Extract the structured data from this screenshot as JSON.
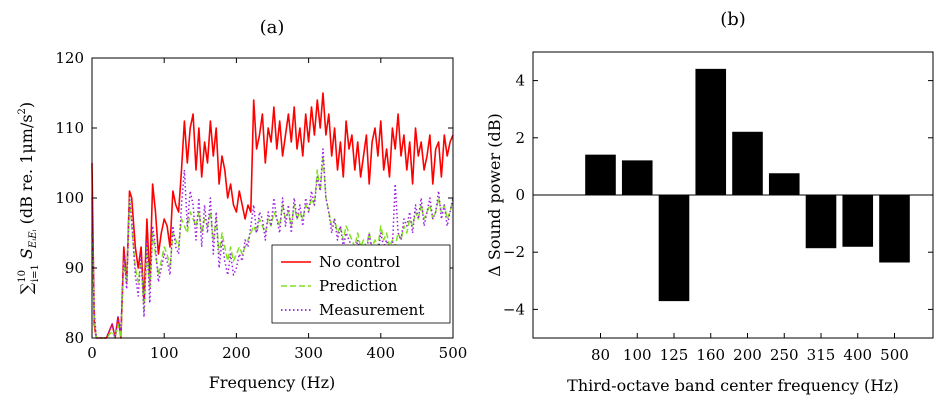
{
  "chart_data": [
    {
      "type": "line",
      "title": "(a)",
      "xlabel": "Frequency (Hz)",
      "ylabel": "∑ S (dB re. 1μm/s²)",
      "ylabel_parts": {
        "sum": "∑",
        "lim_top": "10",
        "lim_bottom": "i=1",
        "symbol": "S",
        "sub": "EᵢEᵢ",
        "rest": " (dB re. 1μm/s",
        "sup": "2",
        "close": ")"
      },
      "xlim": [
        0,
        500
      ],
      "ylim": [
        80,
        120
      ],
      "xticks": [
        0,
        100,
        200,
        300,
        400,
        500
      ],
      "yticks": [
        80,
        90,
        100,
        110,
        120
      ],
      "legend_position": "bottom-right",
      "grid": false,
      "series": [
        {
          "name": "No control",
          "color": "#ff0000",
          "dash": "solid",
          "x": [
            0,
            3,
            6,
            10,
            20,
            28,
            32,
            36,
            40,
            44,
            48,
            52,
            55,
            60,
            64,
            68,
            72,
            76,
            80,
            84,
            88,
            92,
            96,
            100,
            104,
            108,
            112,
            116,
            120,
            124,
            128,
            132,
            136,
            140,
            144,
            148,
            152,
            156,
            160,
            164,
            168,
            172,
            176,
            180,
            184,
            188,
            192,
            196,
            200,
            204,
            208,
            212,
            216,
            220,
            224,
            228,
            232,
            236,
            240,
            244,
            248,
            252,
            256,
            260,
            264,
            268,
            272,
            276,
            280,
            284,
            288,
            292,
            296,
            300,
            304,
            308,
            312,
            316,
            320,
            324,
            328,
            332,
            336,
            340,
            344,
            348,
            352,
            356,
            360,
            364,
            368,
            372,
            376,
            380,
            384,
            388,
            392,
            396,
            400,
            404,
            408,
            412,
            416,
            420,
            424,
            428,
            432,
            436,
            440,
            444,
            448,
            452,
            456,
            460,
            464,
            468,
            472,
            476,
            480,
            484,
            488,
            492,
            496,
            500
          ],
          "y": [
            105,
            82,
            80,
            80,
            80,
            82,
            80,
            83,
            80,
            93,
            88,
            101,
            100,
            93,
            90,
            93,
            85,
            97,
            88,
            102,
            98,
            92,
            95,
            97,
            96,
            93,
            101,
            99,
            98,
            104,
            111,
            105,
            110,
            112,
            104,
            110,
            103,
            108,
            105,
            111,
            106,
            110,
            102,
            106,
            104,
            100,
            102,
            99,
            98,
            101,
            99,
            97,
            99,
            98,
            114,
            107,
            109,
            112,
            105,
            110,
            108,
            113,
            107,
            111,
            106,
            109,
            112,
            108,
            113,
            107,
            110,
            106,
            112,
            108,
            113,
            109,
            114,
            110,
            115,
            109,
            112,
            106,
            110,
            104,
            108,
            103,
            111,
            107,
            109,
            104,
            108,
            103,
            106,
            109,
            102,
            108,
            110,
            106,
            111,
            104,
            107,
            103,
            110,
            107,
            112,
            106,
            109,
            104,
            108,
            102,
            110,
            106,
            108,
            104,
            106,
            109,
            102,
            107,
            108,
            103,
            109,
            106,
            108,
            109
          ]
        },
        {
          "name": "Prediction",
          "color": "#80e020",
          "dash": "dashed",
          "x": [
            0,
            3,
            6,
            10,
            20,
            28,
            32,
            36,
            40,
            44,
            48,
            52,
            55,
            60,
            64,
            68,
            72,
            76,
            80,
            84,
            88,
            92,
            96,
            100,
            104,
            108,
            112,
            116,
            120,
            124,
            128,
            132,
            136,
            140,
            144,
            148,
            152,
            156,
            160,
            164,
            168,
            172,
            176,
            180,
            184,
            188,
            192,
            196,
            200,
            204,
            208,
            212,
            216,
            220,
            224,
            228,
            232,
            236,
            240,
            244,
            248,
            252,
            256,
            260,
            264,
            268,
            272,
            276,
            280,
            284,
            288,
            292,
            296,
            300,
            304,
            308,
            312,
            316,
            320,
            324,
            328,
            332,
            336,
            340,
            344,
            348,
            352,
            356,
            360,
            364,
            368,
            372,
            376,
            380,
            384,
            388,
            392,
            396,
            400,
            404,
            408,
            412,
            416,
            420,
            424,
            428,
            432,
            436,
            440,
            444,
            448,
            452,
            456,
            460,
            464,
            468,
            472,
            476,
            480,
            484,
            488,
            492,
            496,
            500
          ],
          "y": [
            95,
            83,
            80,
            80,
            80,
            81,
            80,
            82,
            80,
            91,
            88,
            100,
            96,
            90,
            88,
            91,
            84,
            93,
            87,
            95,
            92,
            89,
            91,
            93,
            92,
            90,
            95,
            94,
            93,
            97,
            96,
            95,
            98,
            97,
            96,
            98,
            95,
            97,
            96,
            98,
            94,
            97,
            92,
            95,
            93,
            91,
            93,
            91,
            92,
            93,
            92,
            93,
            94,
            95,
            96,
            95,
            97,
            96,
            95,
            97,
            96,
            98,
            97,
            96,
            99,
            97,
            98,
            96,
            99,
            97,
            98,
            97,
            99,
            98,
            100,
            99,
            104,
            101,
            106,
            100,
            98,
            96,
            97,
            95,
            96,
            94,
            96,
            95,
            94,
            93,
            95,
            93,
            94,
            93,
            95,
            93,
            94,
            93,
            96,
            94,
            95,
            93,
            94,
            93,
            95,
            94,
            96,
            95,
            97,
            96,
            98,
            97,
            99,
            97,
            98,
            99,
            97,
            98,
            100,
            98,
            99,
            97,
            98,
            100
          ]
        },
        {
          "name": "Measurement",
          "color": "#9a1fe0",
          "dash": "dotted",
          "x": [
            0,
            3,
            6,
            10,
            20,
            28,
            32,
            36,
            40,
            44,
            48,
            52,
            55,
            60,
            64,
            68,
            72,
            76,
            80,
            84,
            88,
            92,
            96,
            100,
            104,
            108,
            112,
            116,
            120,
            124,
            128,
            132,
            136,
            140,
            144,
            148,
            152,
            156,
            160,
            164,
            168,
            172,
            176,
            180,
            184,
            188,
            192,
            196,
            200,
            204,
            208,
            212,
            216,
            220,
            224,
            228,
            232,
            236,
            240,
            244,
            248,
            252,
            256,
            260,
            264,
            268,
            272,
            276,
            280,
            284,
            288,
            292,
            296,
            300,
            304,
            308,
            312,
            316,
            320,
            324,
            328,
            332,
            336,
            340,
            344,
            348,
            352,
            356,
            360,
            364,
            368,
            372,
            376,
            380,
            384,
            388,
            392,
            396,
            400,
            404,
            408,
            412,
            416,
            420,
            424,
            428,
            432,
            436,
            440,
            444,
            448,
            452,
            456,
            460,
            464,
            468,
            472,
            476,
            480,
            484,
            488,
            492,
            496,
            500
          ],
          "y": [
            100,
            84,
            80,
            80,
            80,
            82,
            80,
            83,
            81,
            92,
            87,
            100,
            97,
            89,
            86,
            92,
            83,
            94,
            85,
            96,
            93,
            88,
            90,
            92,
            91,
            89,
            96,
            93,
            92,
            99,
            104,
            96,
            101,
            99,
            94,
            100,
            93,
            99,
            95,
            100,
            92,
            98,
            90,
            94,
            91,
            89,
            92,
            89,
            90,
            92,
            91,
            94,
            93,
            96,
            99,
            95,
            98,
            97,
            94,
            98,
            96,
            100,
            97,
            95,
            100,
            96,
            99,
            95,
            100,
            97,
            99,
            96,
            100,
            98,
            101,
            99,
            103,
            101,
            107,
            100,
            98,
            95,
            97,
            94,
            96,
            93,
            95,
            94,
            93,
            92,
            94,
            92,
            93,
            92,
            95,
            92,
            93,
            92,
            95,
            93,
            94,
            92,
            93,
            102,
            95,
            94,
            97,
            96,
            98,
            95,
            99,
            97,
            100,
            96,
            98,
            100,
            97,
            98,
            101,
            97,
            99,
            96,
            98,
            100
          ]
        }
      ]
    },
    {
      "type": "bar",
      "title": "(b)",
      "xlabel": "Third-octave band center frequency (Hz)",
      "ylabel": "Δ Sound power (dB)",
      "categories": [
        "80",
        "100",
        "125",
        "160",
        "200",
        "250",
        "315",
        "400",
        "500"
      ],
      "values": [
        1.4,
        1.2,
        -3.7,
        4.4,
        2.2,
        0.75,
        -1.85,
        -1.8,
        -2.35
      ],
      "ylim": [
        -5,
        5
      ],
      "yticks": [
        -4,
        -2,
        0,
        2,
        4
      ],
      "bar_color": "#000000",
      "grid": false
    }
  ]
}
